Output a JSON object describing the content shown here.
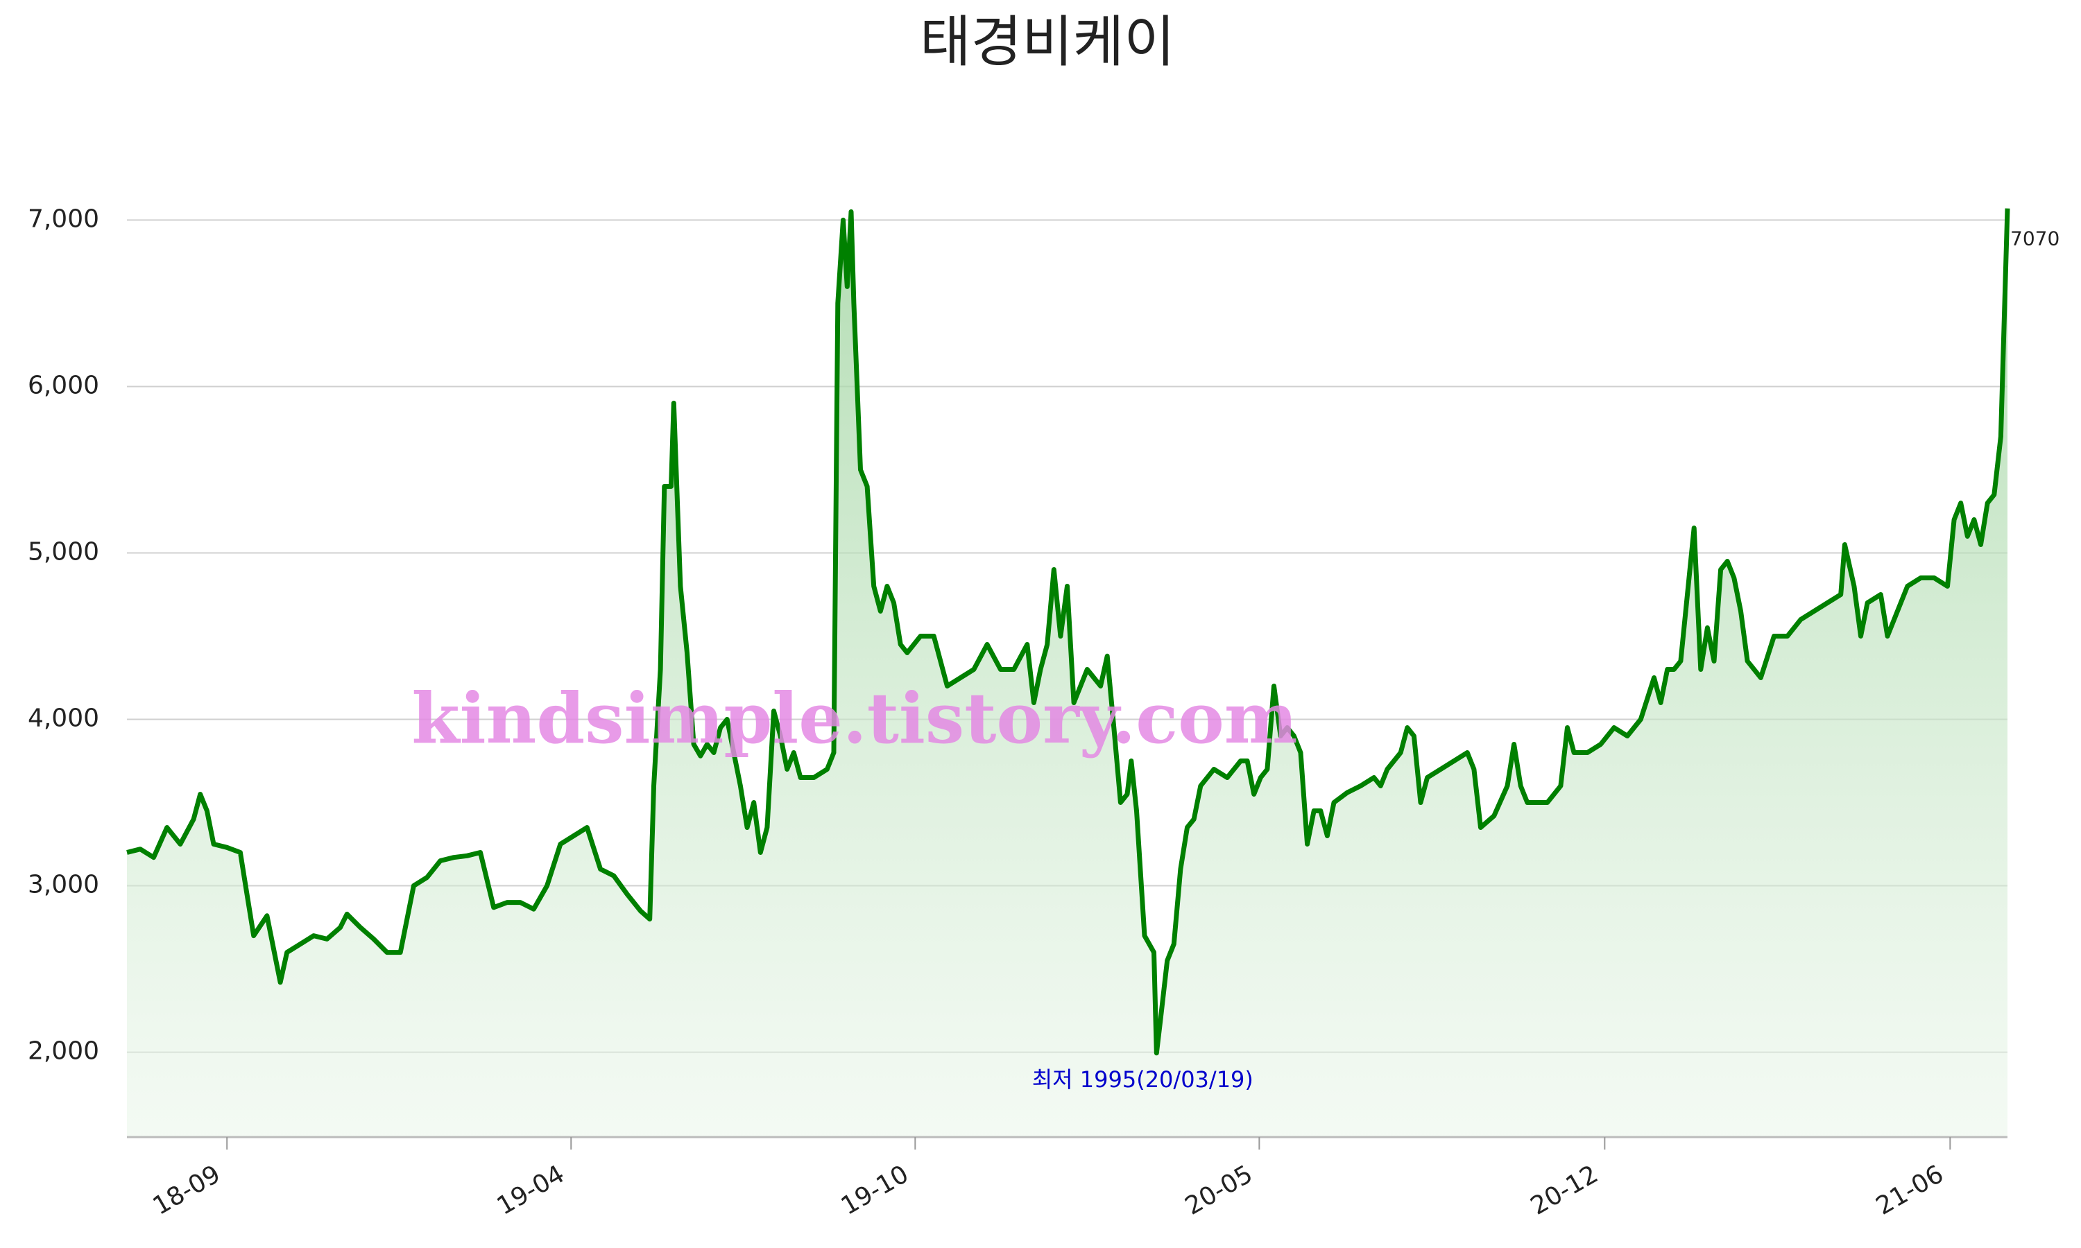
{
  "chart_data": {
    "type": "area-line",
    "title": "태경비케이",
    "watermark": "kindsimple.tistory.com",
    "color": "#008000",
    "grid": true,
    "annotations": [
      {
        "text": "최저 1995(20/03/19)"
      }
    ],
    "x": [
      0,
      10,
      20,
      30,
      40,
      50,
      55,
      60,
      65,
      75,
      85,
      90,
      95,
      105,
      115,
      120,
      130,
      140,
      150,
      160,
      165,
      175,
      185,
      195,
      205,
      215,
      225,
      235,
      245,
      255,
      265,
      275,
      285,
      295,
      305,
      315,
      325,
      335,
      345,
      355,
      365,
      375,
      385,
      392,
      395,
      400,
      403,
      408,
      410,
      415,
      420,
      425,
      430,
      435,
      440,
      445,
      450,
      455,
      460,
      465,
      470,
      475,
      480,
      485,
      490,
      495,
      500,
      505,
      515,
      525,
      530,
      533,
      537,
      540,
      543,
      545,
      550,
      555,
      560,
      565,
      570,
      575,
      580,
      585,
      595,
      605,
      615,
      625,
      635,
      645,
      655,
      665,
      675,
      680,
      685,
      690,
      695,
      700,
      705,
      710,
      715,
      720,
      725,
      730,
      735,
      740,
      745,
      750,
      753,
      757,
      763,
      770,
      772,
      775,
      780,
      785,
      790,
      795,
      800,
      805,
      815,
      825,
      835,
      840,
      845,
      850,
      855,
      860,
      865,
      870,
      875,
      880,
      885,
      890,
      895,
      900,
      905,
      915,
      925,
      935,
      940,
      945,
      955,
      960,
      965,
      970,
      975,
      985,
      995,
      1005,
      1010,
      1015,
      1025,
      1035,
      1040,
      1045,
      1050,
      1055,
      1065,
      1075,
      1080,
      1085,
      1095,
      1105,
      1115,
      1125,
      1135,
      1145,
      1150,
      1155,
      1160,
      1165,
      1175,
      1180,
      1185,
      1190,
      1195,
      1200,
      1205,
      1210,
      1215,
      1225,
      1235,
      1245,
      1255,
      1265,
      1275,
      1285,
      1288,
      1295,
      1300,
      1305,
      1315,
      1320,
      1325,
      1335,
      1345,
      1355,
      1365,
      1370,
      1375,
      1380,
      1385,
      1390,
      1395,
      1400,
      1405,
      1410
    ],
    "values": [
      3200,
      3220,
      3170,
      3350,
      3250,
      3400,
      3550,
      3450,
      3250,
      3230,
      3200,
      2950,
      2700,
      2820,
      2420,
      2600,
      2650,
      2700,
      2680,
      2750,
      2830,
      2750,
      2680,
      2600,
      2600,
      3000,
      3050,
      3150,
      3170,
      3180,
      3200,
      2870,
      2900,
      2900,
      2860,
      3000,
      3250,
      3300,
      3350,
      3100,
      3060,
      2950,
      2850,
      2800,
      3600,
      4300,
      5400,
      5400,
      5900,
      4800,
      4400,
      3850,
      3780,
      3850,
      3800,
      3950,
      4000,
      3800,
      3600,
      3350,
      3500,
      3200,
      3350,
      4050,
      3900,
      3700,
      3800,
      3650,
      3650,
      3700,
      3800,
      6500,
      7000,
      6600,
      7050,
      6500,
      5500,
      5400,
      4800,
      4650,
      4800,
      4700,
      4450,
      4400,
      4500,
      4500,
      4200,
      4250,
      4300,
      4450,
      4300,
      4300,
      4450,
      4100,
      4300,
      4450,
      4900,
      4500,
      4800,
      4100,
      4200,
      4300,
      4250,
      4200,
      4380,
      3950,
      3500,
      3550,
      3750,
      3450,
      2700,
      2600,
      1995,
      2200,
      2550,
      2650,
      3100,
      3350,
      3400,
      3600,
      3700,
      3650,
      3750,
      3750,
      3550,
      3650,
      3700,
      4200,
      3900,
      3950,
      3900,
      3800,
      3250,
      3450,
      3450,
      3300,
      3500,
      3560,
      3600,
      3650,
      3600,
      3700,
      3800,
      3950,
      3900,
      3500,
      3650,
      3700,
      3750,
      3800,
      3700,
      3350,
      3420,
      3600,
      3850,
      3600,
      3500,
      3500,
      3500,
      3600,
      3950,
      3800,
      3800,
      3850,
      3950,
      3900,
      4000,
      4250,
      4100,
      4300,
      4300,
      4350,
      5150,
      4300,
      4550,
      4350,
      4900,
      4950,
      4850,
      4650,
      4350,
      4250,
      4500,
      4500,
      4600,
      4650,
      4700,
      4750,
      5050,
      4800,
      4500,
      4700,
      4750,
      4500,
      4600,
      4800,
      4850,
      4850,
      4800,
      5200,
      5300,
      5100,
      5200,
      5050,
      5300,
      5350,
      5700,
      7070
    ],
    "xlim": [
      0,
      1410
    ],
    "xticks": [
      {
        "value": 75,
        "label": "18-09"
      },
      {
        "value": 333,
        "label": "19-04"
      },
      {
        "value": 591,
        "label": "19-10"
      },
      {
        "value": 849,
        "label": "20-05"
      },
      {
        "value": 1108,
        "label": "20-12"
      },
      {
        "value": 1367,
        "label": "21-06"
      }
    ],
    "ylim": [
      1490,
      7360
    ],
    "yticks": [
      {
        "value": 2000,
        "label": "2,000"
      },
      {
        "value": 3000,
        "label": "3,000"
      },
      {
        "value": 4000,
        "label": "4,000"
      },
      {
        "value": 5000,
        "label": "5,000"
      },
      {
        "value": 6000,
        "label": "6,000"
      },
      {
        "value": 7000,
        "label": "7,000"
      }
    ]
  }
}
